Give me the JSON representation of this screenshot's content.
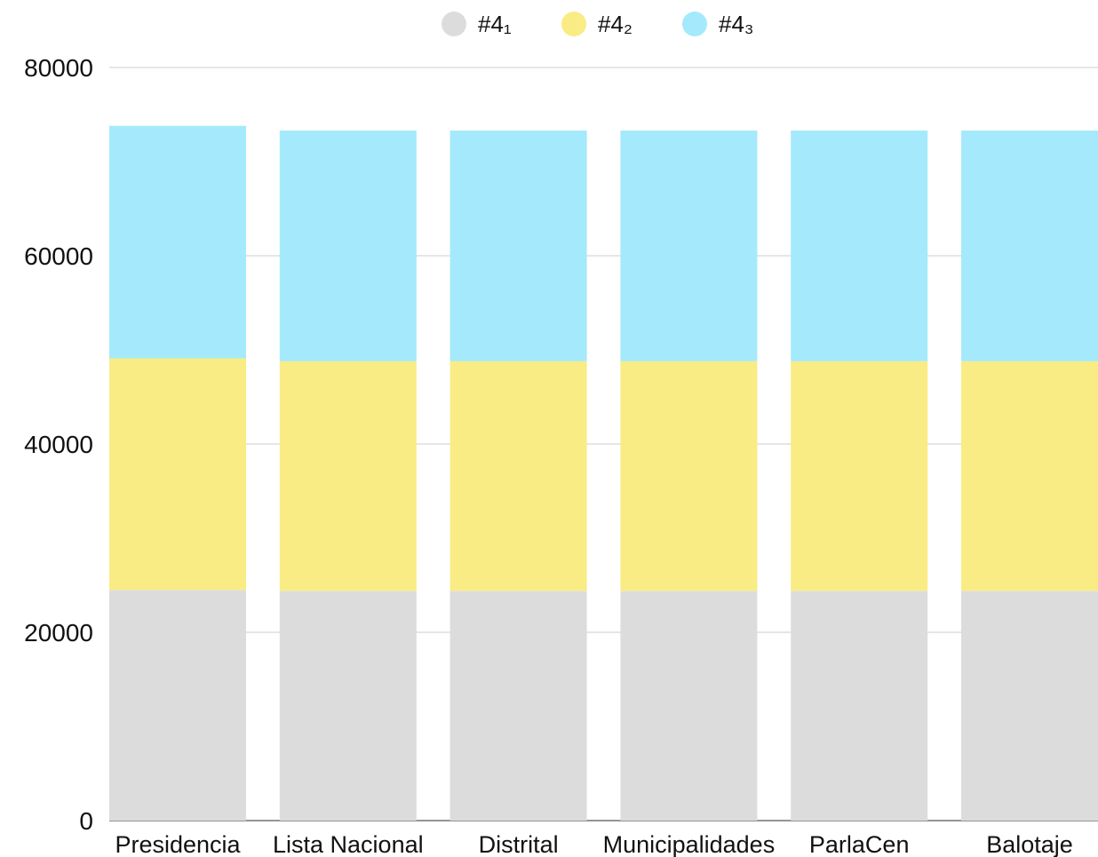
{
  "chart_data": {
    "type": "bar",
    "stacked": true,
    "categories": [
      "Presidencia",
      "Lista Nacional",
      "Distrital",
      "Municipalidades",
      "ParlaCen",
      "Balotaje"
    ],
    "series": [
      {
        "name": "#4₁",
        "color": "#dddcdd",
        "values": [
          24500,
          24400,
          24400,
          24400,
          24400,
          24400
        ]
      },
      {
        "name": "#4₂",
        "color": "#f9ec84",
        "values": [
          24600,
          24400,
          24400,
          24400,
          24400,
          24400
        ]
      },
      {
        "name": "#4₃",
        "color": "#a4eafc",
        "values": [
          24700,
          24500,
          24500,
          24500,
          24500,
          24500
        ]
      }
    ],
    "yticks": [
      "0",
      "20000",
      "40000",
      "60000",
      "80000"
    ],
    "ylim": [
      0,
      80000
    ],
    "grid": true,
    "legend_position": "top-center",
    "title": "",
    "xlabel": "",
    "ylabel": ""
  }
}
